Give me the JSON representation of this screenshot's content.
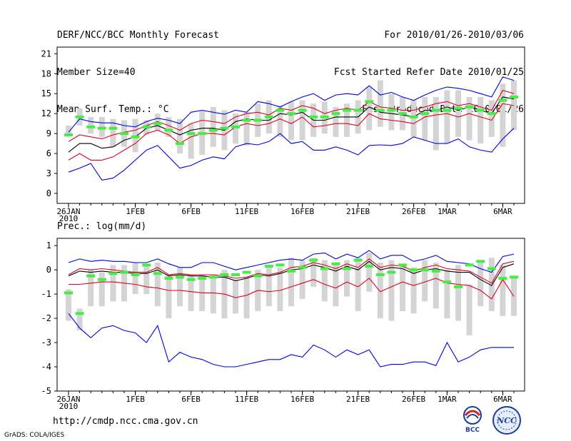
{
  "header": {
    "title": "DERF/NCC/BCC Monthly Forecast",
    "member_size": "Member Size=40",
    "variable": "Mean Surf. Temp.: °C",
    "period": "For 2010/01/26-2010/03/06",
    "started": "Fcst Started Refer Date 2010/01/25",
    "produced": "Fcst Produced Date 2010/01/26"
  },
  "footer": {
    "url": "http://cmdp.ncc.cma.gov.cn",
    "grads": "GrADS: COLA/IGES",
    "logo_bcc": "BCC",
    "logo_ncc": "NCC"
  },
  "colors": {
    "max_min": "#0000e0",
    "spread": "#e00020",
    "mean": "#000000",
    "box": "#d4d4d4",
    "obs": "#44ee44"
  },
  "chart_data": [
    {
      "type": "line",
      "name": "temperature-panel",
      "title": "Mean Surf. Temp.: °C",
      "xlabel": "",
      "ylabel": "",
      "n_days": 40,
      "ylim": [
        -1.5,
        22
      ],
      "yticks": [
        0,
        3,
        6,
        9,
        12,
        15,
        18,
        21
      ],
      "xticks": [
        {
          "day": 0,
          "label": "26JAN",
          "label2": "2010"
        },
        {
          "day": 6,
          "label": "1FEB"
        },
        {
          "day": 11,
          "label": "6FEB"
        },
        {
          "day": 16,
          "label": "11FEB"
        },
        {
          "day": 21,
          "label": "16FEB"
        },
        {
          "day": 26,
          "label": "21FEB"
        },
        {
          "day": 31,
          "label": "26FEB"
        },
        {
          "day": 34,
          "label": "1MAR"
        },
        {
          "day": 39,
          "label": "6MAR"
        }
      ],
      "series": [
        {
          "name": "max",
          "color": "#0000e0",
          "values": [
            9.2,
            11.2,
            10.8,
            10.6,
            10.6,
            10.2,
            10.0,
            10.8,
            11.3,
            11.0,
            10.5,
            12.2,
            12.5,
            12.2,
            11.9,
            12.5,
            12.2,
            13.8,
            13.5,
            13.0,
            13.8,
            14.5,
            15.0,
            14.0,
            14.8,
            15.0,
            14.8,
            16.2,
            14.8,
            15.2,
            14.5,
            14.0,
            14.8,
            15.5,
            16.0,
            15.8,
            15.5,
            15.0,
            14.5,
            17.5,
            17.0
          ]
        },
        {
          "name": "upper",
          "color": "#e00020",
          "values": [
            7.8,
            8.8,
            8.5,
            8.2,
            8.8,
            9.2,
            9.5,
            10.2,
            10.8,
            10.2,
            9.5,
            10.5,
            11.0,
            10.8,
            10.5,
            11.5,
            12.0,
            12.2,
            11.8,
            12.8,
            12.5,
            13.2,
            12.8,
            12.0,
            12.5,
            12.8,
            12.5,
            13.8,
            13.0,
            12.8,
            12.5,
            12.5,
            13.0,
            13.5,
            13.8,
            13.2,
            13.5,
            13.0,
            12.5,
            15.5,
            15.0
          ]
        },
        {
          "name": "mean",
          "color": "#000000",
          "values": [
            6.2,
            7.5,
            7.5,
            6.8,
            7.0,
            8.0,
            8.5,
            9.8,
            10.2,
            9.5,
            8.8,
            9.5,
            9.8,
            9.8,
            9.5,
            10.8,
            11.2,
            11.0,
            11.0,
            12.0,
            11.8,
            12.2,
            11.0,
            11.0,
            11.5,
            11.5,
            11.5,
            13.0,
            12.2,
            12.0,
            11.8,
            11.5,
            12.5,
            12.5,
            13.0,
            12.5,
            13.0,
            12.5,
            12.0,
            14.5,
            14.2
          ]
        },
        {
          "name": "lower",
          "color": "#e00020",
          "values": [
            5.0,
            6.0,
            5.0,
            5.0,
            5.5,
            6.5,
            7.5,
            9.0,
            9.5,
            8.8,
            7.5,
            8.5,
            9.0,
            9.0,
            8.8,
            10.0,
            10.5,
            10.2,
            10.5,
            11.2,
            10.5,
            11.5,
            10.0,
            10.2,
            10.5,
            10.5,
            10.2,
            12.0,
            11.2,
            11.0,
            10.8,
            10.5,
            11.5,
            11.8,
            12.0,
            11.5,
            12.0,
            11.5,
            11.0,
            13.5,
            13.2
          ]
        },
        {
          "name": "min",
          "color": "#0000e0",
          "values": [
            3.2,
            3.8,
            4.5,
            2.0,
            2.3,
            3.5,
            5.0,
            6.5,
            7.2,
            5.5,
            3.8,
            4.2,
            5.0,
            5.5,
            5.2,
            7.0,
            7.5,
            7.3,
            7.8,
            9.0,
            7.5,
            7.8,
            6.5,
            6.5,
            7.0,
            6.5,
            5.8,
            7.2,
            7.3,
            7.2,
            7.5,
            8.5,
            8.0,
            7.5,
            7.5,
            8.2,
            7.0,
            6.5,
            6.2,
            8.2,
            9.8
          ]
        }
      ],
      "boxes": [
        [
          9.0,
          10.2
        ],
        [
          10.2,
          12.8
        ],
        [
          9.0,
          11.5
        ],
        [
          8.5,
          11.5
        ],
        [
          7.0,
          11.2
        ],
        [
          7.0,
          11.0
        ],
        [
          6.2,
          11.2
        ],
        [
          8.8,
          11.0
        ],
        [
          9.5,
          12.0
        ],
        [
          8.5,
          11.5
        ],
        [
          6.0,
          11.2
        ],
        [
          5.2,
          10.5
        ],
        [
          5.8,
          12.5
        ],
        [
          7.0,
          13.0
        ],
        [
          6.5,
          12.5
        ],
        [
          7.5,
          12.0
        ],
        [
          7.2,
          12.2
        ],
        [
          8.5,
          13.5
        ],
        [
          9.0,
          14.0
        ],
        [
          8.5,
          13.2
        ],
        [
          8.0,
          13.8
        ],
        [
          8.0,
          14.0
        ],
        [
          8.5,
          13.5
        ],
        [
          9.0,
          13.8
        ],
        [
          8.5,
          13.0
        ],
        [
          8.5,
          13.5
        ],
        [
          9.0,
          14.0
        ],
        [
          9.5,
          16.0
        ],
        [
          10.0,
          17.0
        ],
        [
          9.5,
          15.0
        ],
        [
          9.5,
          14.5
        ],
        [
          8.5,
          14.0
        ],
        [
          8.0,
          14.5
        ],
        [
          6.5,
          14.5
        ],
        [
          7.5,
          15.5
        ],
        [
          8.5,
          15.5
        ],
        [
          8.0,
          14.5
        ],
        [
          7.5,
          14.5
        ],
        [
          8.5,
          14.0
        ],
        [
          7.0,
          16.5
        ],
        [
          9.5,
          17.0
        ]
      ],
      "obs": [
        8.8,
        11.5,
        10.0,
        9.8,
        9.8,
        9.0,
        8.5,
        10.0,
        10.5,
        9.5,
        7.5,
        9.0,
        9.0,
        9.5,
        9.8,
        10.0,
        11.0,
        11.0,
        11.5,
        12.5,
        12.0,
        12.5,
        11.5,
        11.5,
        12.0,
        12.5,
        12.5,
        13.8,
        12.5,
        12.5,
        12.0,
        11.5,
        12.0,
        12.5,
        12.5,
        12.8,
        13.0,
        12.5,
        12.0,
        14.0,
        14.5
      ]
    },
    {
      "type": "line",
      "name": "precip-panel",
      "title": "Prec.: log(mm/d)",
      "xlabel": "",
      "ylabel": "",
      "n_days": 40,
      "ylim": [
        -5,
        1.3
      ],
      "yticks": [
        -5,
        -4,
        -3,
        -2,
        -1,
        0,
        1
      ],
      "xticks": [
        {
          "day": 0,
          "label": "26JAN",
          "label2": "2010"
        },
        {
          "day": 6,
          "label": "1FEB"
        },
        {
          "day": 11,
          "label": "6FEB"
        },
        {
          "day": 16,
          "label": "11FEB"
        },
        {
          "day": 21,
          "label": "16FEB"
        },
        {
          "day": 26,
          "label": "21FEB"
        },
        {
          "day": 31,
          "label": "26FEB"
        },
        {
          "day": 34,
          "label": "1MAR"
        },
        {
          "day": 39,
          "label": "6MAR"
        }
      ],
      "series": [
        {
          "name": "max",
          "color": "#0000e0",
          "values": [
            0.3,
            0.45,
            0.35,
            0.4,
            0.35,
            0.35,
            0.3,
            0.3,
            0.45,
            0.25,
            0.1,
            0.1,
            0.3,
            0.3,
            0.15,
            0.0,
            0.1,
            0.2,
            0.3,
            0.4,
            0.45,
            0.4,
            0.65,
            0.7,
            0.45,
            0.65,
            0.5,
            0.8,
            0.45,
            0.6,
            0.6,
            0.35,
            0.45,
            0.6,
            0.35,
            0.3,
            0.25,
            0.05,
            -0.1,
            0.55,
            0.65
          ]
        },
        {
          "name": "upper",
          "color": "#e00020",
          "values": [
            -0.2,
            0.05,
            0.0,
            0.05,
            0.0,
            -0.05,
            -0.1,
            -0.1,
            0.1,
            -0.2,
            -0.15,
            -0.2,
            -0.2,
            -0.2,
            -0.25,
            -0.35,
            -0.3,
            -0.15,
            -0.2,
            -0.1,
            0.1,
            0.15,
            0.3,
            0.2,
            0.05,
            0.25,
            0.1,
            0.45,
            0.1,
            0.2,
            0.15,
            -0.05,
            0.1,
            0.2,
            0.05,
            0.0,
            -0.05,
            -0.3,
            -0.55,
            0.25,
            0.35
          ]
        },
        {
          "name": "mean",
          "color": "#000000",
          "values": [
            -0.25,
            -0.05,
            -0.1,
            -0.05,
            -0.1,
            -0.1,
            -0.15,
            -0.15,
            0.0,
            -0.25,
            -0.2,
            -0.25,
            -0.25,
            -0.3,
            -0.3,
            -0.45,
            -0.35,
            -0.2,
            -0.25,
            -0.15,
            0.0,
            0.05,
            0.2,
            0.1,
            -0.05,
            0.15,
            0.0,
            0.35,
            0.0,
            0.1,
            0.05,
            -0.15,
            0.0,
            0.05,
            -0.05,
            -0.1,
            -0.1,
            -0.4,
            -0.65,
            0.1,
            0.25
          ]
        },
        {
          "name": "lower",
          "color": "#e00020",
          "values": [
            -0.6,
            -0.6,
            -0.55,
            -0.5,
            -0.5,
            -0.55,
            -0.6,
            -0.7,
            -0.75,
            -0.85,
            -0.85,
            -0.9,
            -0.95,
            -0.95,
            -1.0,
            -1.15,
            -1.05,
            -0.85,
            -0.9,
            -0.85,
            -0.7,
            -0.55,
            -0.4,
            -0.6,
            -0.75,
            -0.5,
            -0.7,
            -0.35,
            -0.9,
            -0.7,
            -0.5,
            -0.65,
            -0.5,
            -0.35,
            -0.55,
            -0.6,
            -0.65,
            -0.85,
            -1.2,
            -0.4,
            -1.1
          ]
        },
        {
          "name": "min",
          "color": "#0000e0",
          "values": [
            -1.8,
            -2.4,
            -2.8,
            -2.4,
            -2.3,
            -2.5,
            -2.6,
            -3.0,
            -2.3,
            -3.8,
            -3.4,
            -3.6,
            -3.7,
            -3.9,
            -4.0,
            -4.0,
            -3.9,
            -3.8,
            -3.7,
            -3.7,
            -3.5,
            -3.6,
            -3.1,
            -3.3,
            -3.6,
            -3.3,
            -3.5,
            -3.3,
            -4.0,
            -3.9,
            -3.9,
            -3.8,
            -3.8,
            -3.95,
            -3.0,
            -3.8,
            -3.6,
            -3.3,
            -3.2,
            -3.2,
            -3.2
          ]
        },
        {
          "name": "obs",
          "color": "#44ee44",
          "values": [
            -0.95,
            -1.8,
            -0.25,
            -0.4,
            -0.15,
            -0.1,
            -0.2,
            0.2,
            -0.15,
            -0.35,
            -0.3,
            -0.4,
            -0.35,
            -0.3,
            -0.2,
            -0.2,
            -0.1,
            -0.25,
            0.15,
            0.2,
            -0.05,
            0.1,
            0.4,
            0.05,
            0.25,
            0.05,
            0.4,
            0.15,
            -0.2,
            -0.1,
            0.2,
            0.0,
            0.0,
            -0.05,
            -0.5,
            -0.7,
            0.2,
            0.35,
            0.05,
            -0.35,
            -0.3
          ]
        }
      ],
      "boxes": [
        [
          -2.1,
          -0.8
        ],
        [
          -2.5,
          -1.6
        ],
        [
          -1.5,
          0.0
        ],
        [
          -1.5,
          -0.1
        ],
        [
          -1.3,
          0.2
        ],
        [
          -1.3,
          0.2
        ],
        [
          -1.0,
          0.3
        ],
        [
          -1.0,
          0.2
        ],
        [
          -1.5,
          0.3
        ],
        [
          -2.0,
          -0.2
        ],
        [
          -1.5,
          0.1
        ],
        [
          -1.7,
          -0.2
        ],
        [
          -1.7,
          -0.2
        ],
        [
          -1.8,
          -0.2
        ],
        [
          -2.0,
          0.0
        ],
        [
          -1.8,
          -0.4
        ],
        [
          -2.0,
          -0.3
        ],
        [
          -1.7,
          0.0
        ],
        [
          -1.5,
          0.2
        ],
        [
          -1.7,
          0.1
        ],
        [
          -1.5,
          0.5
        ],
        [
          -1.2,
          0.4
        ],
        [
          -0.7,
          0.5
        ],
        [
          -1.3,
          0.4
        ],
        [
          -1.5,
          0.3
        ],
        [
          -1.1,
          0.4
        ],
        [
          -1.7,
          0.5
        ],
        [
          -0.9,
          0.7
        ],
        [
          -2.0,
          0.3
        ],
        [
          -2.1,
          0.4
        ],
        [
          -1.7,
          0.2
        ],
        [
          -1.8,
          0.1
        ],
        [
          -1.3,
          0.4
        ],
        [
          -1.6,
          0.3
        ],
        [
          -2.0,
          0.0
        ],
        [
          -2.1,
          0.2
        ],
        [
          -2.7,
          -0.6
        ],
        [
          -1.5,
          0.3
        ],
        [
          -1.7,
          0.5
        ],
        [
          -1.9,
          0.2
        ],
        [
          -1.9,
          -0.3
        ]
      ],
      "obs": [
        -0.95,
        -1.8,
        -0.25,
        -0.4,
        -0.15,
        -0.1,
        -0.2,
        0.2,
        -0.15,
        -0.35,
        -0.3,
        -0.4,
        -0.35,
        -0.3,
        -0.2,
        -0.2,
        -0.1,
        -0.25,
        0.15,
        0.2,
        -0.05,
        0.1,
        0.4,
        0.05,
        0.25,
        0.05,
        0.4,
        0.15,
        -0.2,
        -0.1,
        0.2,
        0.0,
        0.0,
        -0.05,
        -0.5,
        -0.7,
        0.2,
        0.35,
        0.05,
        -0.35,
        -0.3
      ]
    }
  ]
}
